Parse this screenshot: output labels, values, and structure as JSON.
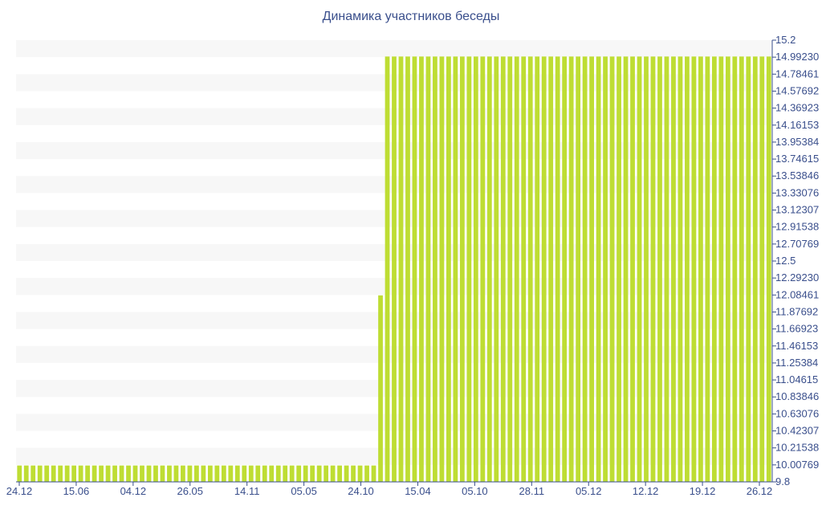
{
  "chart_data": {
    "type": "bar",
    "title": "Динамика участников беседы",
    "xlabel": "",
    "ylabel": "",
    "ylim": [
      9.8,
      15.2
    ],
    "grid": true,
    "bar_color": "#bedd33",
    "band_color": "#f7f7f7",
    "axis_color": "#3a4f8c",
    "y_tick_labels": [
      "9.8",
      "10.00769",
      "10.21538",
      "10.42307",
      "10.63076",
      "10.83846",
      "11.04615",
      "11.25384",
      "11.46153",
      "11.66923",
      "11.87692",
      "12.08461",
      "12.29230",
      "12.5",
      "12.70769",
      "12.91538",
      "13.12307",
      "13.33076",
      "13.53846",
      "13.74615",
      "13.95384",
      "14.16153",
      "14.36923",
      "14.57692",
      "14.78461",
      "14.99230",
      "15.2"
    ],
    "x_tick_labels": [
      "24.12",
      "15.06",
      "04.12",
      "26.05",
      "14.11",
      "05.05",
      "24.10",
      "15.04",
      "05.10",
      "28.11",
      "05.12",
      "12.12",
      "19.12",
      "26.12"
    ],
    "series": [
      {
        "values": [
          10,
          10,
          10,
          10,
          10,
          10,
          10,
          10,
          10,
          10,
          10,
          10,
          10,
          10,
          10,
          10,
          10,
          10,
          10,
          10,
          10,
          10,
          10,
          10,
          10,
          10,
          10,
          10,
          10,
          10,
          10,
          10,
          10,
          10,
          10,
          10,
          10,
          10,
          10,
          10,
          10,
          10,
          10,
          10,
          10,
          10,
          10,
          10,
          10,
          10,
          10,
          10,
          10,
          12.08,
          15,
          15,
          15,
          15,
          15,
          15,
          15,
          15,
          15,
          15,
          15,
          15,
          15,
          15,
          15,
          15,
          15,
          15,
          15,
          15,
          15,
          15,
          15,
          15,
          15,
          15,
          15,
          15,
          15,
          15,
          15,
          15,
          15,
          15,
          15,
          15,
          15,
          15,
          15,
          15,
          15,
          15,
          15,
          15,
          15,
          15,
          15,
          15,
          15,
          15,
          15,
          15,
          15,
          15,
          15,
          15,
          15
        ]
      }
    ]
  }
}
